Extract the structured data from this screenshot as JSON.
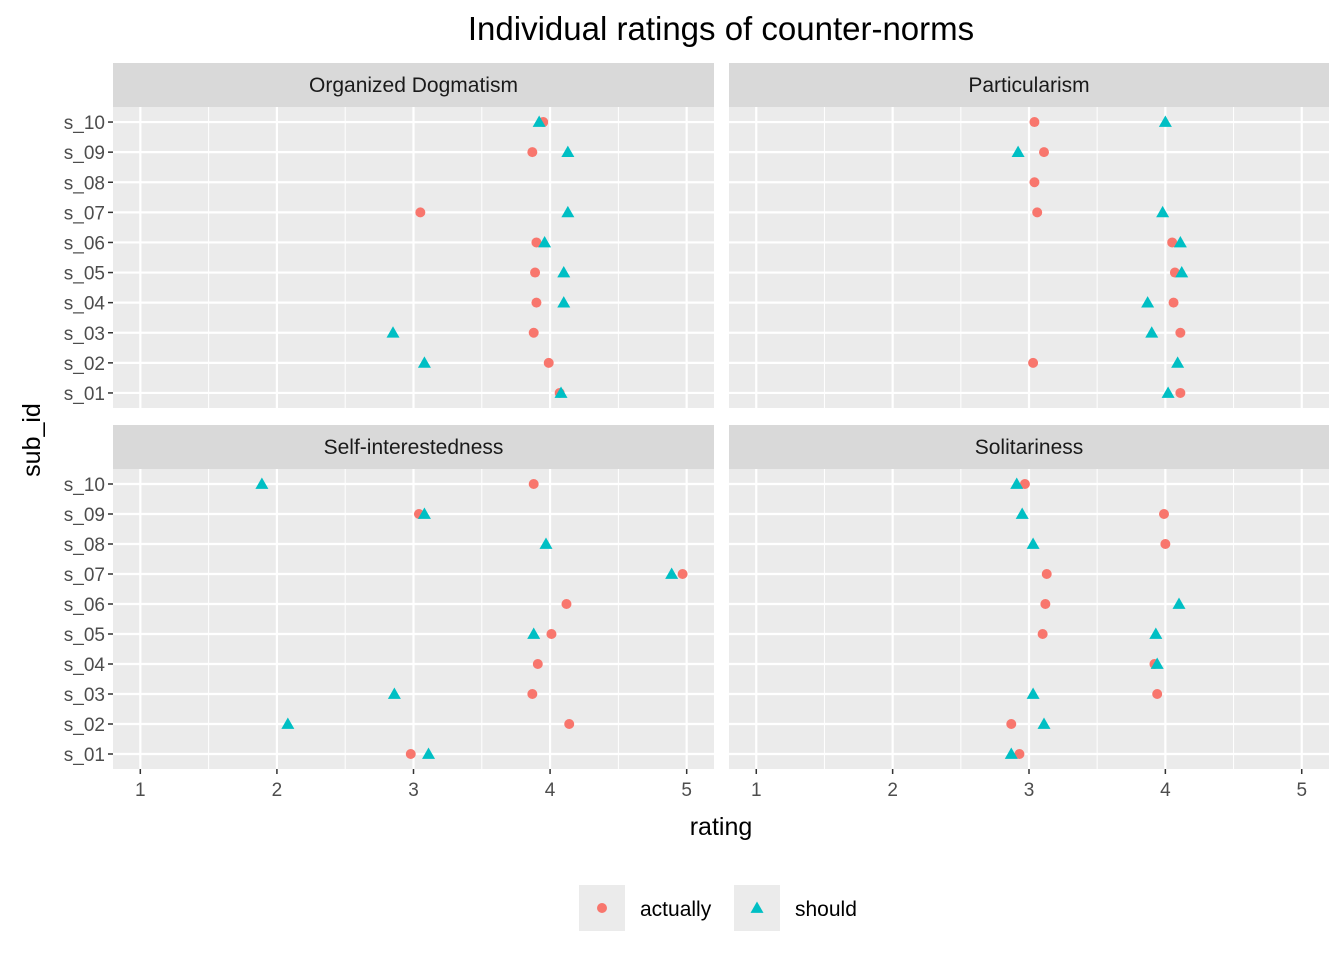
{
  "chart_data": {
    "type": "scatter",
    "title": "Individual ratings of counter-norms",
    "xlabel": "rating",
    "ylabel": "sub_id",
    "xlim": [
      0.8,
      5.2
    ],
    "x_ticks": [
      "1",
      "2",
      "3",
      "4",
      "5"
    ],
    "categories": [
      "s_01",
      "s_02",
      "s_03",
      "s_04",
      "s_05",
      "s_06",
      "s_07",
      "s_08",
      "s_09",
      "s_10"
    ],
    "grid": true,
    "legend_position": "bottom",
    "colors": {
      "actually": "#F8766D",
      "should": "#00BFC4",
      "panel_bg": "#EBEBEB",
      "strip_bg": "#D9D9D9",
      "grid": "#FFFFFF"
    },
    "series_meta": [
      {
        "name": "actually",
        "shape": "circle"
      },
      {
        "name": "should",
        "shape": "triangle"
      }
    ],
    "panels": [
      {
        "title": "Organized Dogmatism",
        "series": [
          {
            "name": "actually",
            "values": [
              4.07,
              3.99,
              3.88,
              3.9,
              3.89,
              3.9,
              3.05,
              null,
              3.87,
              3.95
            ]
          },
          {
            "name": "should",
            "values": [
              4.08,
              3.08,
              2.85,
              4.1,
              4.1,
              3.96,
              4.13,
              null,
              4.13,
              3.92
            ]
          }
        ]
      },
      {
        "title": "Particularism",
        "series": [
          {
            "name": "actually",
            "values": [
              4.11,
              3.03,
              4.11,
              4.06,
              4.07,
              4.05,
              3.06,
              3.04,
              3.11,
              3.04
            ]
          },
          {
            "name": "should",
            "values": [
              4.02,
              4.09,
              3.9,
              3.87,
              4.12,
              4.11,
              3.98,
              null,
              2.92,
              4.0
            ]
          }
        ]
      },
      {
        "title": "Self-interestedness",
        "series": [
          {
            "name": "actually",
            "values": [
              2.98,
              4.14,
              3.87,
              3.91,
              4.01,
              4.12,
              4.97,
              null,
              3.04,
              3.88
            ]
          },
          {
            "name": "should",
            "values": [
              3.11,
              2.08,
              2.86,
              null,
              3.88,
              null,
              4.89,
              3.97,
              3.08,
              1.89
            ]
          }
        ]
      },
      {
        "title": "Solitariness",
        "series": [
          {
            "name": "actually",
            "values": [
              2.93,
              2.87,
              3.94,
              3.92,
              3.1,
              3.12,
              3.13,
              4.0,
              3.99,
              2.97
            ]
          },
          {
            "name": "should",
            "values": [
              2.87,
              3.11,
              3.03,
              3.94,
              3.93,
              4.1,
              null,
              3.03,
              2.95,
              2.91
            ]
          }
        ]
      }
    ]
  }
}
